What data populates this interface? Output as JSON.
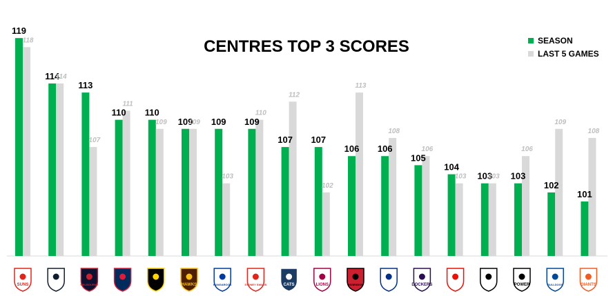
{
  "chart_data": {
    "type": "bar",
    "title": "CENTRES TOP 3 SCORES",
    "legend_position": "top-right",
    "grid": false,
    "ylim": [
      95,
      120
    ],
    "categories": [
      "Gold Coast Suns",
      "Carlton",
      "Melbourne",
      "Adelaide",
      "Richmond",
      "Hawthorn",
      "North Melbourne",
      "Sydney",
      "Geelong",
      "Brisbane Lions",
      "Essendon",
      "West Coast",
      "Fremantle",
      "St Kilda",
      "Collingwood",
      "Port Adelaide",
      "Western Bulldogs",
      "GWS Giants"
    ],
    "series": [
      {
        "name": "SEASON",
        "color": "#00b050",
        "values": [
          119,
          114,
          113,
          110,
          110,
          109,
          109,
          109,
          107,
          107,
          106,
          106,
          105,
          104,
          103,
          103,
          102,
          101
        ]
      },
      {
        "name": "LAST 5 GAMES",
        "color": "#d9d9d9",
        "values": [
          118,
          114,
          107,
          111,
          109,
          109,
          103,
          110,
          112,
          102,
          113,
          108,
          106,
          103,
          103,
          106,
          109,
          108
        ]
      }
    ]
  },
  "logos": [
    {
      "icon": "suns-logo-icon",
      "text": "SUNS",
      "bg": "#ffffff",
      "fg": "#e2231a"
    },
    {
      "icon": "blues-logo-icon",
      "text": "",
      "bg": "#ffffff",
      "fg": "#0e1e2d"
    },
    {
      "icon": "demons-logo-icon",
      "text": "MELBOURNE",
      "bg": "#0f1131",
      "fg": "#cc2031"
    },
    {
      "icon": "crows-logo-icon",
      "text": "",
      "bg": "#002b5c",
      "fg": "#e21937"
    },
    {
      "icon": "tigers-logo-icon",
      "text": "",
      "bg": "#000000",
      "fg": "#ffd200"
    },
    {
      "icon": "hawks-logo-icon",
      "text": "HAWKS",
      "bg": "#4d2004",
      "fg": "#fbbf15"
    },
    {
      "icon": "kangaroos-logo-icon",
      "text": "KANGAROOS",
      "bg": "#ffffff",
      "fg": "#013b9f"
    },
    {
      "icon": "swans-logo-icon",
      "text": "SYDNEY SWANS",
      "bg": "#ffffff",
      "fg": "#e1251b"
    },
    {
      "icon": "cats-logo-icon",
      "text": "CATS",
      "bg": "#1c3c63",
      "fg": "#ffffff"
    },
    {
      "icon": "lions-logo-icon",
      "text": "LIONS",
      "bg": "#ffffff",
      "fg": "#a30046"
    },
    {
      "icon": "bombers-logo-icon",
      "text": "ESSENDON",
      "bg": "#cc2031",
      "fg": "#000000"
    },
    {
      "icon": "eagles-logo-icon",
      "text": "",
      "bg": "#ffffff",
      "fg": "#003087"
    },
    {
      "icon": "dockers-logo-icon",
      "text": "DOCKERS",
      "bg": "#ffffff",
      "fg": "#2a0d54"
    },
    {
      "icon": "saints-logo-icon",
      "text": "",
      "bg": "#ffffff",
      "fg": "#ed0f05"
    },
    {
      "icon": "magpies-logo-icon",
      "text": "",
      "bg": "#ffffff",
      "fg": "#000000"
    },
    {
      "icon": "power-logo-icon",
      "text": "POWER",
      "bg": "#ffffff",
      "fg": "#000000"
    },
    {
      "icon": "bulldogs-logo-icon",
      "text": "BULLDOGS",
      "bg": "#ffffff",
      "fg": "#014896"
    },
    {
      "icon": "giants-logo-icon",
      "text": "GIANTS",
      "bg": "#ffffff",
      "fg": "#f15c22"
    }
  ]
}
